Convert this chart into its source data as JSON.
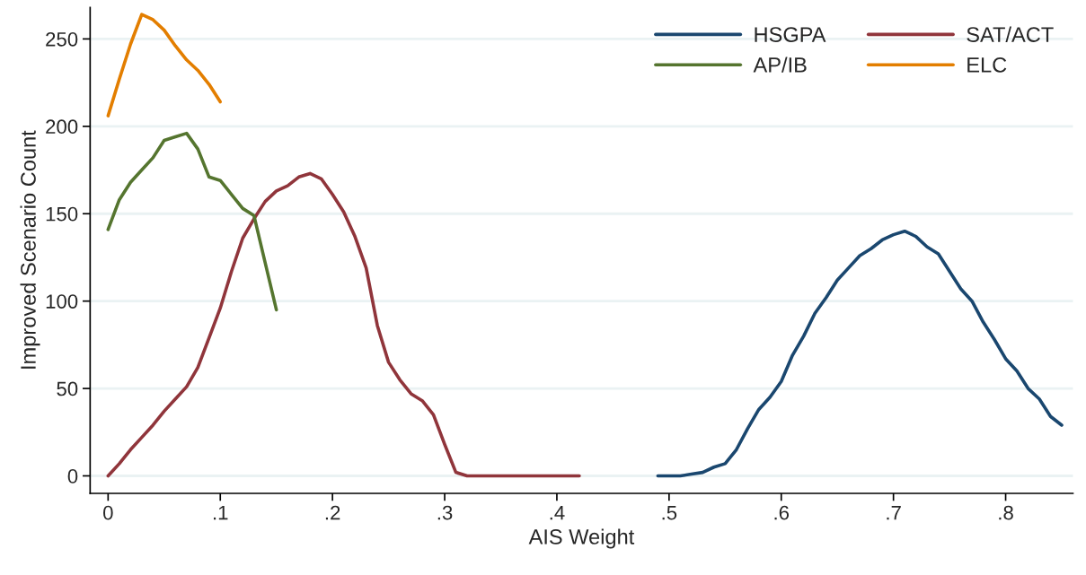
{
  "chart_data": {
    "type": "line",
    "xlabel": "AIS Weight",
    "ylabel": "Improved Scenario Count",
    "xlim": [
      -0.016,
      0.86
    ],
    "ylim": [
      -10,
      268
    ],
    "xticks": [
      0,
      {
        "value": 0.1,
        "label": ".1"
      },
      {
        "value": 0.2,
        "label": ".2"
      },
      {
        "value": 0.3,
        "label": ".3"
      },
      {
        "value": 0.4,
        "label": ".4"
      },
      {
        "value": 0.5,
        "label": ".5"
      },
      {
        "value": 0.6,
        "label": ".6"
      },
      {
        "value": 0.7,
        "label": ".7"
      },
      {
        "value": 0.8,
        "label": ".8"
      }
    ],
    "yticks": [
      0,
      50,
      100,
      150,
      200,
      250
    ],
    "grid": "y",
    "legend": "top right",
    "marker": "none",
    "line_style": "solid",
    "series": [
      {
        "name": "HSGPA",
        "color": "#1a476f",
        "x": [
          0.49,
          0.5,
          0.51,
          0.52,
          0.53,
          0.54,
          0.55,
          0.56,
          0.57,
          0.58,
          0.59,
          0.6,
          0.61,
          0.62,
          0.63,
          0.64,
          0.65,
          0.66,
          0.67,
          0.68,
          0.69,
          0.7,
          0.71,
          0.72,
          0.73,
          0.74,
          0.75,
          0.76,
          0.77,
          0.78,
          0.79,
          0.8,
          0.81,
          0.82,
          0.83,
          0.84,
          0.85
        ],
        "values": [
          0,
          0,
          0,
          1,
          2,
          5,
          7,
          15,
          27,
          38,
          45,
          54,
          69,
          80,
          93,
          102,
          112,
          119,
          126,
          130,
          135,
          138,
          140,
          137,
          131,
          127,
          117,
          107,
          100,
          88,
          78,
          67,
          60,
          50,
          44,
          34,
          29
        ]
      },
      {
        "name": "SAT/ACT",
        "color": "#90353b",
        "x": [
          0,
          0.01,
          0.02,
          0.03,
          0.04,
          0.05,
          0.06,
          0.07,
          0.08,
          0.09,
          0.1,
          0.11,
          0.12,
          0.13,
          0.14,
          0.15,
          0.16,
          0.17,
          0.18,
          0.19,
          0.2,
          0.21,
          0.22,
          0.23,
          0.24,
          0.25,
          0.26,
          0.27,
          0.28,
          0.29,
          0.3,
          0.31,
          0.32,
          0.33,
          0.34,
          0.35,
          0.36,
          0.37,
          0.38,
          0.39,
          0.4,
          0.41,
          0.42
        ],
        "values": [
          0,
          7,
          15,
          22,
          29,
          37,
          44,
          51,
          62,
          79,
          96,
          117,
          136,
          147,
          157,
          163,
          166,
          171,
          173,
          170,
          161,
          151,
          137,
          119,
          86,
          65,
          55,
          47,
          43,
          35,
          18,
          2,
          0,
          0,
          0,
          0,
          0,
          0,
          0,
          0,
          0,
          0,
          0
        ]
      },
      {
        "name": "AP/IB",
        "color": "#55752f",
        "x": [
          0,
          0.01,
          0.02,
          0.03,
          0.04,
          0.05,
          0.06,
          0.07,
          0.08,
          0.09,
          0.1,
          0.11,
          0.12,
          0.13,
          0.14,
          0.15
        ],
        "values": [
          141,
          158,
          168,
          175,
          182,
          192,
          194,
          196,
          187,
          171,
          169,
          161,
          153,
          149,
          122,
          95
        ]
      },
      {
        "name": "ELC",
        "color": "#e37e00",
        "x": [
          0,
          0.01,
          0.02,
          0.03,
          0.04,
          0.05,
          0.06,
          0.07,
          0.08,
          0.09,
          0.1
        ],
        "values": [
          206,
          227,
          247,
          264,
          261,
          255,
          246,
          238,
          232,
          224,
          214
        ]
      }
    ]
  }
}
